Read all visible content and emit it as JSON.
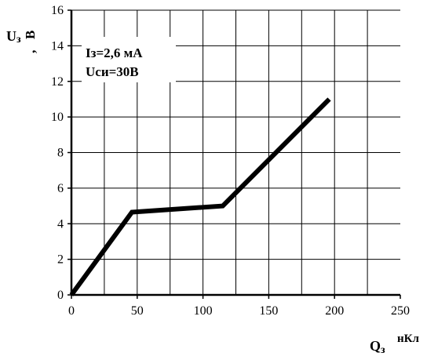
{
  "chart_data": {
    "type": "line",
    "title": "",
    "xlabel": {
      "symbol": "Q",
      "subscript": "з",
      "unit": "нКл"
    },
    "ylabel": {
      "symbol": "U",
      "subscript": "з",
      "separator": ",",
      "unit": "В"
    },
    "xlim": [
      0,
      250
    ],
    "ylim": [
      0,
      16
    ],
    "xticks": [
      0,
      50,
      100,
      150,
      200,
      250
    ],
    "yticks": [
      0,
      2,
      4,
      6,
      8,
      10,
      12,
      14,
      16
    ],
    "grid": true,
    "series": [
      {
        "x": [
          0,
          46,
          115,
          196
        ],
        "y": [
          0,
          4.65,
          5.0,
          11.0
        ],
        "color": "#000000"
      }
    ],
    "annotations": [
      {
        "text": "Iз=2,6 мА"
      },
      {
        "text": "Uси=30В"
      }
    ]
  }
}
